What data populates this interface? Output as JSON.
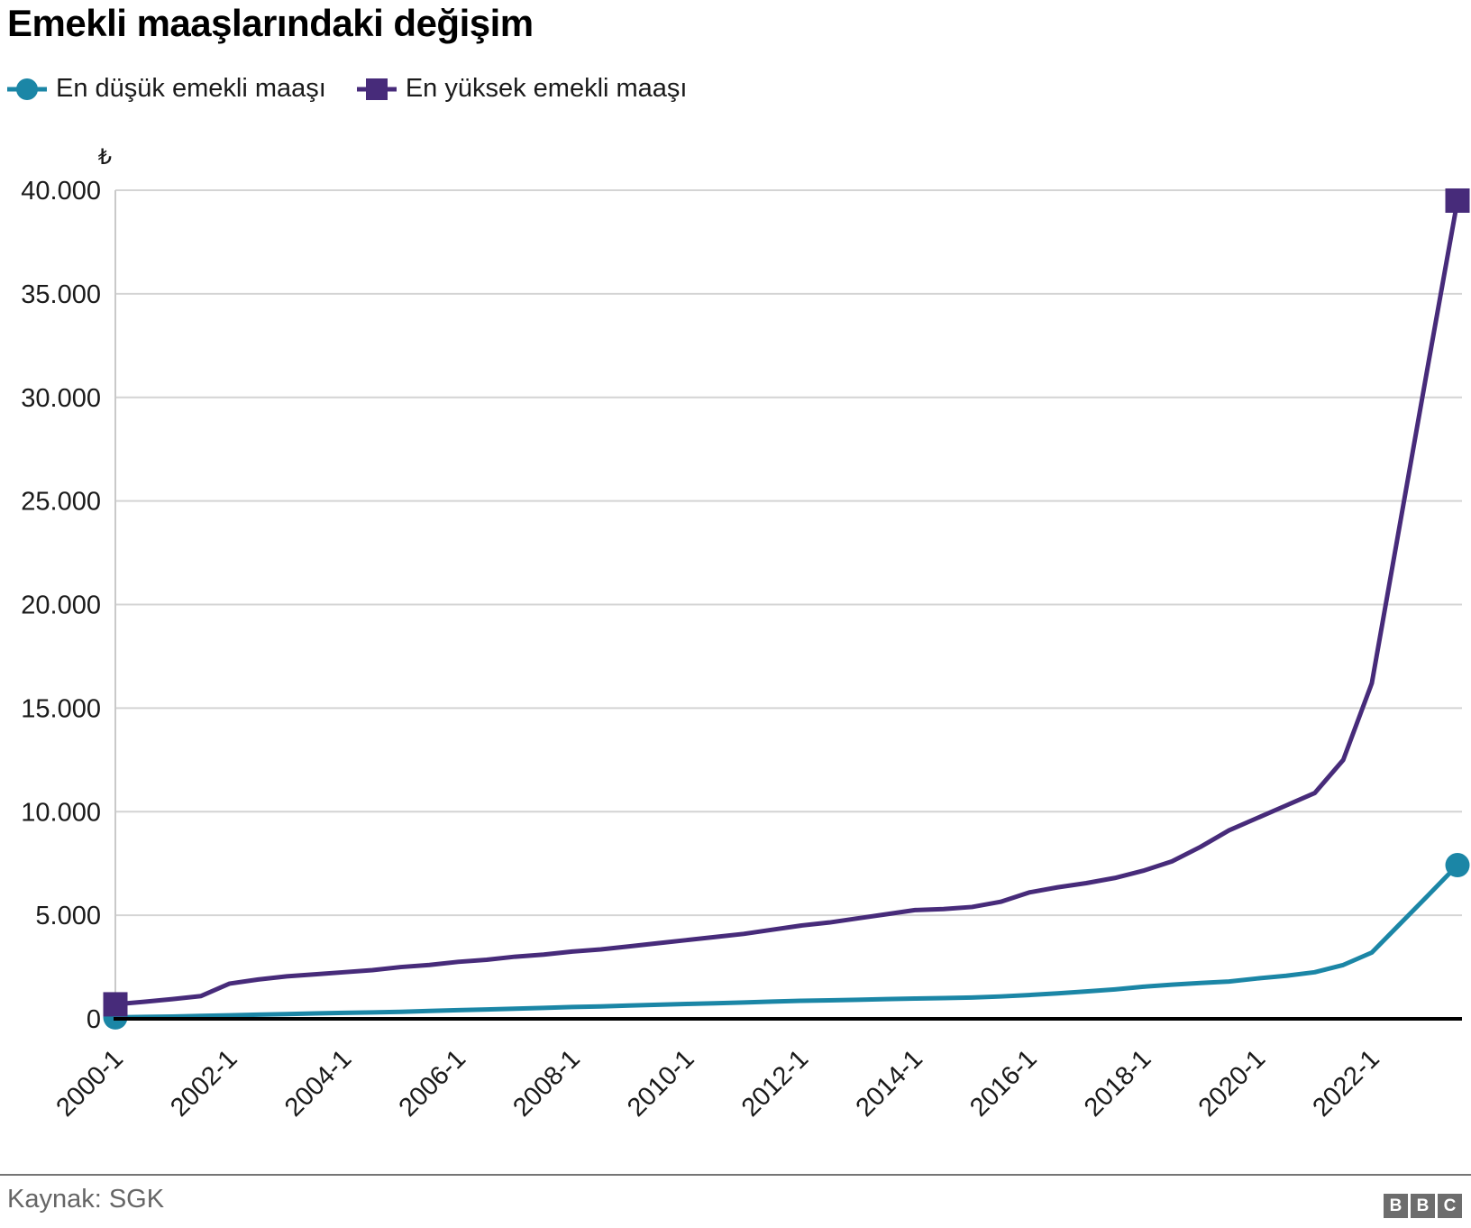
{
  "title": "Emekli maaşlarındaki değişim",
  "legend": [
    {
      "label": "En düşük emekli maaşı",
      "marker": "circle",
      "color": "#1B86A6"
    },
    {
      "label": "En yüksek emekli maaşı",
      "marker": "square",
      "color": "#472B7A"
    }
  ],
  "y_axis": {
    "unit": "₺",
    "tick_labels": [
      "0",
      "5.000",
      "10.000",
      "15.000",
      "20.000",
      "25.000",
      "30.000",
      "35.000",
      "40.000"
    ],
    "tick_values": [
      0,
      5000,
      10000,
      15000,
      20000,
      25000,
      30000,
      35000,
      40000
    ]
  },
  "x_axis": {
    "tick_labels": [
      "2000-1",
      "2002-1",
      "2004-1",
      "2006-1",
      "2008-1",
      "2010-1",
      "2012-1",
      "2014-1",
      "2016-1",
      "2018-1",
      "2020-1",
      "2022-1"
    ],
    "tick_every": 4
  },
  "chart_data": {
    "type": "line",
    "x": [
      "2000-1",
      "2000-7",
      "2001-1",
      "2001-7",
      "2002-1",
      "2002-7",
      "2003-1",
      "2003-7",
      "2004-1",
      "2004-7",
      "2005-1",
      "2005-7",
      "2006-1",
      "2006-7",
      "2007-1",
      "2007-7",
      "2008-1",
      "2008-7",
      "2009-1",
      "2009-7",
      "2010-1",
      "2010-7",
      "2011-1",
      "2011-7",
      "2012-1",
      "2012-7",
      "2013-1",
      "2013-7",
      "2014-1",
      "2014-7",
      "2015-1",
      "2015-7",
      "2016-1",
      "2016-7",
      "2017-1",
      "2017-7",
      "2018-1",
      "2018-7",
      "2019-1",
      "2019-7",
      "2020-1",
      "2020-7",
      "2021-1",
      "2021-7",
      "2022-1",
      "2022-7",
      "2023-1",
      "2023-7"
    ],
    "series": [
      {
        "name": "En düşük emekli maaşı",
        "color": "#1B86A6",
        "marker": "circle",
        "values": [
          70,
          90,
          110,
          140,
          170,
          200,
          230,
          260,
          290,
          310,
          340,
          380,
          420,
          450,
          490,
          530,
          570,
          600,
          640,
          680,
          720,
          750,
          790,
          830,
          870,
          890,
          920,
          950,
          980,
          1000,
          1030,
          1080,
          1150,
          1230,
          1320,
          1420,
          1550,
          1650,
          1730,
          1800,
          1950,
          2080,
          2250,
          2600,
          3200,
          4600,
          6000,
          7420
        ]
      },
      {
        "name": "En yüksek emekli maaşı",
        "color": "#472B7A",
        "marker": "square",
        "values": [
          700,
          820,
          950,
          1100,
          1700,
          1900,
          2050,
          2150,
          2250,
          2350,
          2500,
          2600,
          2750,
          2850,
          3000,
          3100,
          3250,
          3350,
          3500,
          3650,
          3800,
          3950,
          4100,
          4300,
          4500,
          4650,
          4850,
          5050,
          5250,
          5300,
          5400,
          5650,
          6100,
          6350,
          6550,
          6800,
          7150,
          7600,
          8300,
          9100,
          9700,
          10300,
          10900,
          12500,
          16200,
          24000,
          31800,
          39500
        ]
      }
    ],
    "title": "Emekli maaşlarındaki değişim",
    "xlabel": "",
    "ylabel": "₺",
    "ylim": [
      0,
      40000
    ],
    "grid": "horizontal",
    "legend_position": "top"
  },
  "footer": {
    "source": "Kaynak: SGK",
    "logo_blocks": [
      "B",
      "B",
      "C"
    ]
  },
  "colors": {
    "gridline": "#d4d4d4",
    "y_axis_line": "#c9c9c9",
    "baseline": "#000000",
    "tick_text": "#1a1a1a",
    "footer_text": "#666666",
    "divider": "#757575",
    "logo_block": "#6d6d6d"
  }
}
